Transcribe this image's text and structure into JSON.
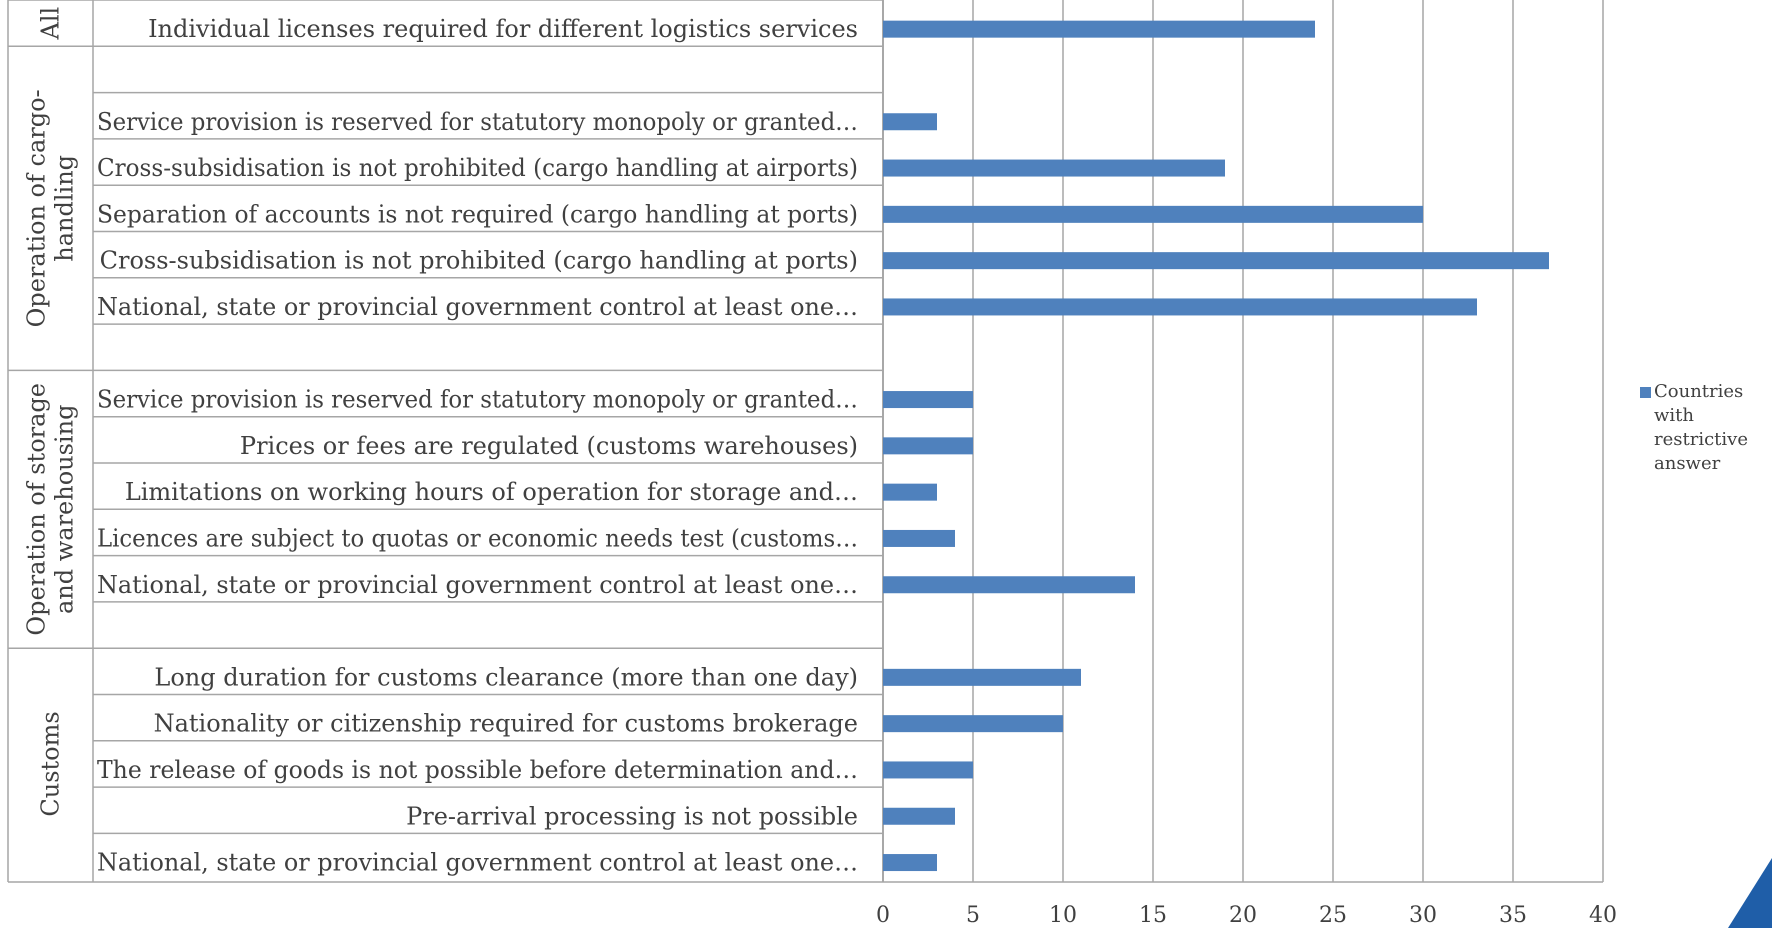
{
  "chart_data": {
    "type": "bar",
    "orientation": "horizontal",
    "categories": [
      {
        "group": "All",
        "label": "Individual licenses required for different logistics services",
        "value": 24
      },
      {
        "group": "Operation of cargo-handling",
        "label": "Service provision is reserved for statutory monopoly or granted…",
        "value": 3
      },
      {
        "group": "Operation of cargo-handling",
        "label": "Cross-subsidisation is not prohibited (cargo handling at airports)",
        "value": 19
      },
      {
        "group": "Operation of cargo-handling",
        "label": "Separation of accounts is not required (cargo handling at ports)",
        "value": 30
      },
      {
        "group": "Operation of cargo-handling",
        "label": "Cross-subsidisation is not prohibited (cargo handling at ports)",
        "value": 37
      },
      {
        "group": "Operation of cargo-handling",
        "label": "National, state or provincial government control at least one…",
        "value": 33
      },
      {
        "group": "Operation of storage and warehousing",
        "label": "Service provision is reserved for statutory monopoly or granted…",
        "value": 5
      },
      {
        "group": "Operation of storage and warehousing",
        "label": "Prices or fees are regulated (customs warehouses)",
        "value": 5
      },
      {
        "group": "Operation of storage and warehousing",
        "label": "Limitations on working hours of operation for storage and…",
        "value": 3
      },
      {
        "group": "Operation of storage and warehousing",
        "label": "Licences are subject to quotas or economic needs test (customs…",
        "value": 4
      },
      {
        "group": "Operation of storage and warehousing",
        "label": "National, state or provincial government control at least one…",
        "value": 14
      },
      {
        "group": "Customs",
        "label": "Long duration for customs clearance (more than one day)",
        "value": 11
      },
      {
        "group": "Customs",
        "label": "Nationality or citizenship required for customs brokerage",
        "value": 10
      },
      {
        "group": "Customs",
        "label": "The release of goods is not possible before determination and…",
        "value": 5
      },
      {
        "group": "Customs",
        "label": "Pre-arrival processing is not possible",
        "value": 4
      },
      {
        "group": "Customs",
        "label": "National, state or provincial government control at least one…",
        "value": 3
      }
    ],
    "groups": [
      {
        "name": "All",
        "lines": [
          "All"
        ]
      },
      {
        "name": "Operation of cargo-handling",
        "lines": [
          "Operation of cargo-",
          "handling"
        ]
      },
      {
        "name": "Operation of storage and warehousing",
        "lines": [
          "Operation of storage",
          "and warehousing"
        ]
      },
      {
        "name": "Customs",
        "lines": [
          "Customs"
        ]
      }
    ],
    "series": [
      {
        "name": "Countries with restrictive answer",
        "color": "#4f81bd"
      }
    ],
    "xlim": [
      0,
      40
    ],
    "xticks": [
      "0",
      "5",
      "10",
      "15",
      "20",
      "25",
      "30",
      "35",
      "40"
    ],
    "grid": true,
    "legend_position": "right"
  },
  "legend": {
    "label": "Countries with restrictive answer"
  },
  "colors": {
    "bar": "#4f81bd",
    "grid": "#a6a6a6",
    "text": "#404040",
    "corner": "#1f5ea8"
  }
}
